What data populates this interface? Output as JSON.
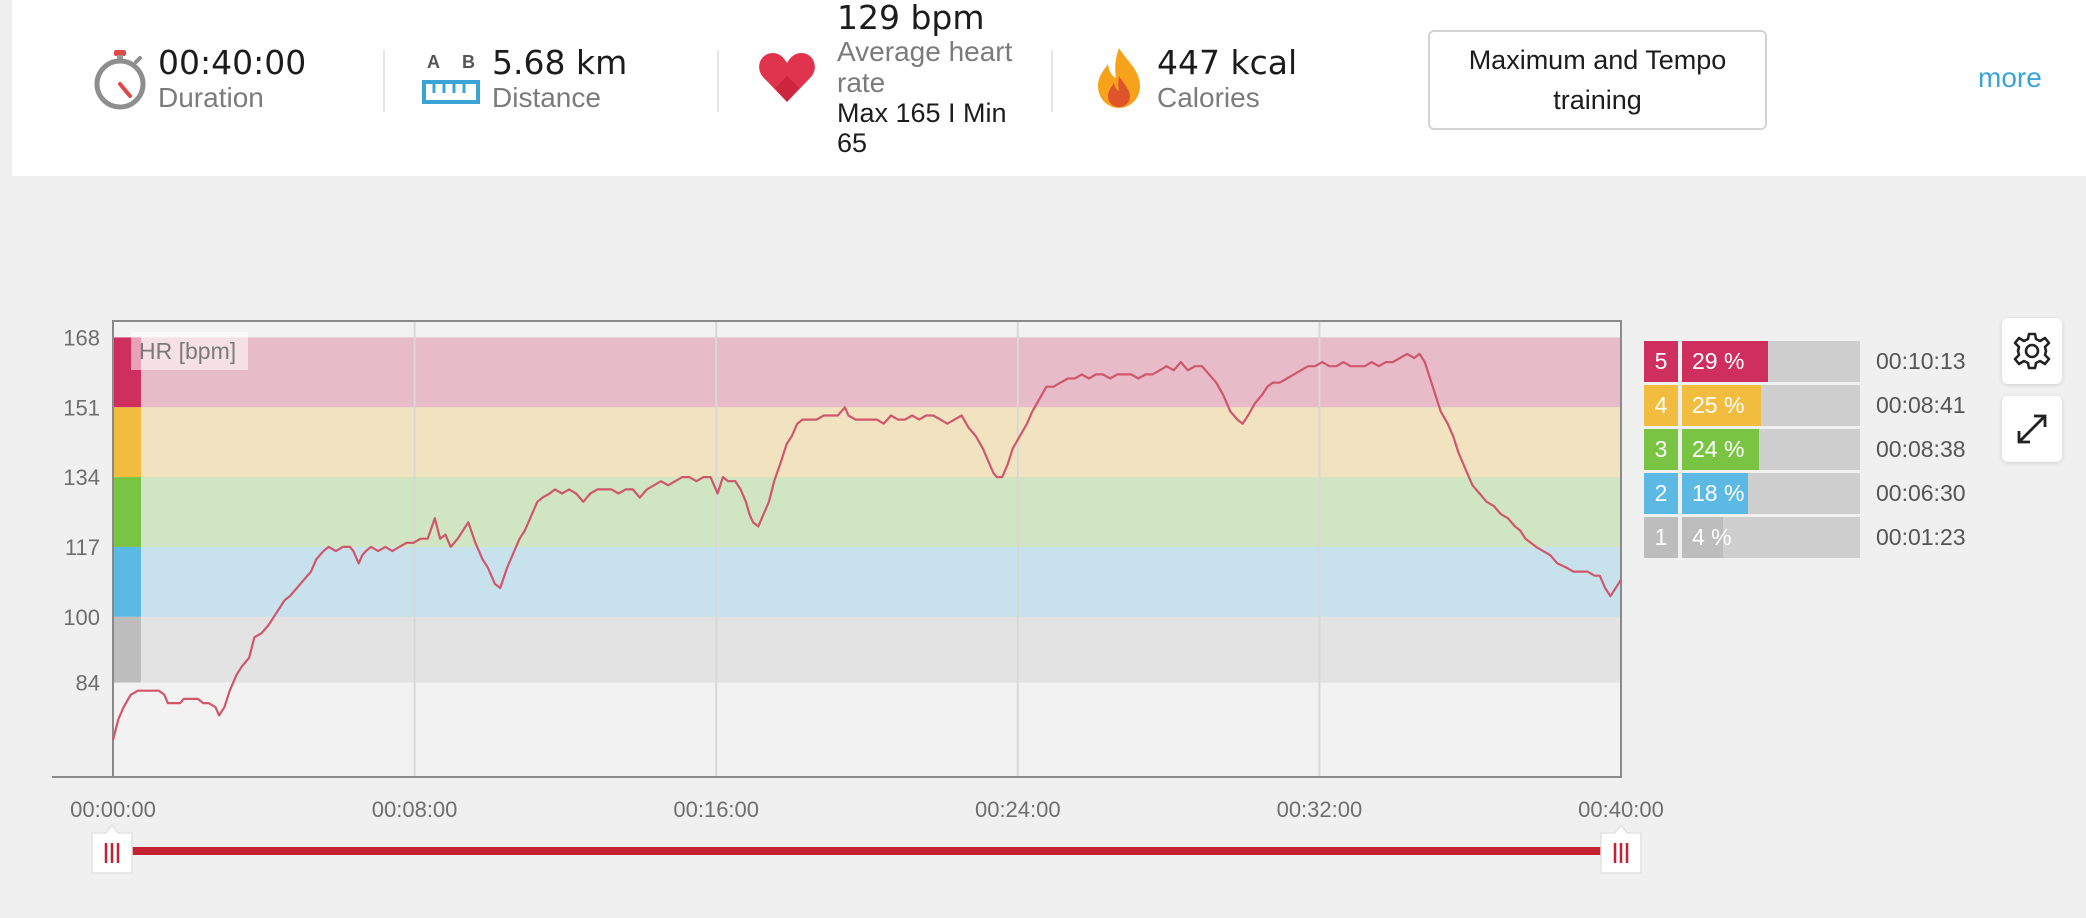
{
  "summary": {
    "duration": {
      "value": "00:40:00",
      "label": "Duration",
      "icon": "stopwatch-icon"
    },
    "distance": {
      "value": "5.68 km",
      "label": "Distance",
      "icon": "ruler-ab-icon",
      "icon_a": "A",
      "icon_b": "B"
    },
    "heart_rate": {
      "value": "129 bpm",
      "label": "Average heart rate",
      "max_min": "Max 165  I  Min 65",
      "icon": "heart-icon"
    },
    "calories": {
      "value": "447 kcal",
      "label": "Calories",
      "icon": "flame-icon"
    },
    "training_type": "Maximum and Tempo training",
    "more_label": "more"
  },
  "colors": {
    "accent": "#3aa4d6",
    "line": "#d0576a",
    "slider": "#c42132",
    "zone5": "#cf2f5e",
    "zone4": "#f2bd3f",
    "zone3": "#79c543",
    "zone2": "#5cb9e4",
    "zone1": "#bdbdbd"
  },
  "chart_data": {
    "type": "line",
    "series": [
      {
        "values": [
          [
            0.0,
            70
          ],
          [
            0.3,
            75
          ],
          [
            0.6,
            78
          ],
          [
            1.0,
            81
          ],
          [
            1.4,
            82
          ],
          [
            1.8,
            82
          ],
          [
            2.2,
            82
          ],
          [
            2.6,
            82
          ],
          [
            2.9,
            81
          ],
          [
            3.1,
            79
          ],
          [
            3.4,
            79
          ],
          [
            3.8,
            79
          ],
          [
            4.0,
            80
          ],
          [
            4.4,
            80
          ],
          [
            4.8,
            80
          ],
          [
            5.1,
            79
          ],
          [
            5.4,
            79
          ],
          [
            5.8,
            78
          ],
          [
            6.0,
            76
          ],
          [
            6.3,
            78
          ],
          [
            6.6,
            82
          ],
          [
            7.0,
            86
          ],
          [
            7.3,
            88
          ],
          [
            7.7,
            90
          ],
          [
            8.0,
            95
          ],
          [
            8.4,
            96
          ],
          [
            8.8,
            98
          ],
          [
            9.1,
            100
          ],
          [
            9.4,
            102
          ],
          [
            9.7,
            104
          ],
          [
            10.0,
            105
          ],
          [
            10.4,
            107
          ],
          [
            10.8,
            109
          ],
          [
            11.2,
            111
          ],
          [
            11.5,
            114
          ],
          [
            11.9,
            116
          ],
          [
            12.2,
            117
          ],
          [
            12.6,
            116
          ],
          [
            13.0,
            117
          ],
          [
            13.4,
            117
          ],
          [
            13.6,
            116
          ],
          [
            13.9,
            113
          ],
          [
            14.1,
            115
          ],
          [
            14.3,
            116
          ],
          [
            14.6,
            117
          ],
          [
            15.0,
            116
          ],
          [
            15.4,
            117
          ],
          [
            15.8,
            116
          ],
          [
            16.2,
            117
          ],
          [
            16.6,
            118
          ],
          [
            17.0,
            118
          ],
          [
            17.4,
            119
          ],
          [
            17.8,
            119
          ],
          [
            18.2,
            124
          ],
          [
            18.5,
            119
          ],
          [
            18.8,
            120
          ],
          [
            19.1,
            117
          ],
          [
            19.5,
            119
          ],
          [
            19.8,
            121
          ],
          [
            20.1,
            123
          ],
          [
            20.5,
            118
          ],
          [
            20.9,
            114
          ],
          [
            21.2,
            112
          ],
          [
            21.6,
            108
          ],
          [
            21.9,
            107
          ],
          [
            22.3,
            112
          ],
          [
            22.6,
            115
          ],
          [
            23.0,
            119
          ],
          [
            23.3,
            121
          ],
          [
            23.6,
            124
          ],
          [
            24.0,
            128
          ],
          [
            24.3,
            129
          ],
          [
            24.7,
            130
          ],
          [
            25.0,
            131
          ],
          [
            25.4,
            130
          ],
          [
            25.8,
            131
          ],
          [
            26.2,
            130
          ],
          [
            26.6,
            128
          ],
          [
            27.0,
            130
          ],
          [
            27.4,
            131
          ],
          [
            27.8,
            131
          ],
          [
            28.2,
            131
          ],
          [
            28.6,
            130
          ],
          [
            29.0,
            131
          ],
          [
            29.4,
            131
          ],
          [
            29.8,
            129
          ],
          [
            30.2,
            131
          ],
          [
            30.6,
            132
          ],
          [
            31.0,
            133
          ],
          [
            31.4,
            132
          ],
          [
            31.8,
            133
          ],
          [
            32.2,
            134
          ],
          [
            32.6,
            134
          ],
          [
            33.0,
            133
          ],
          [
            33.4,
            134
          ],
          [
            33.8,
            134
          ],
          [
            34.2,
            130
          ],
          [
            34.5,
            134
          ],
          [
            34.8,
            133
          ],
          [
            35.2,
            133
          ],
          [
            35.5,
            131
          ],
          [
            35.8,
            128
          ],
          [
            36.0,
            125
          ],
          [
            36.2,
            123
          ],
          [
            36.5,
            122
          ],
          [
            36.8,
            125
          ],
          [
            37.1,
            128
          ],
          [
            37.4,
            133
          ],
          [
            37.8,
            138
          ],
          [
            38.1,
            142
          ],
          [
            38.4,
            144
          ],
          [
            38.7,
            147
          ],
          [
            39.0,
            148
          ],
          [
            39.4,
            148
          ],
          [
            39.8,
            148
          ],
          [
            40.2,
            149
          ],
          [
            40.6,
            149
          ],
          [
            41.0,
            149
          ],
          [
            41.4,
            151
          ],
          [
            41.6,
            149
          ],
          [
            42.0,
            148
          ],
          [
            42.4,
            148
          ],
          [
            42.8,
            148
          ],
          [
            43.2,
            148
          ],
          [
            43.6,
            147
          ],
          [
            44.0,
            149
          ],
          [
            44.4,
            148
          ],
          [
            44.8,
            148
          ],
          [
            45.2,
            149
          ],
          [
            45.6,
            148
          ],
          [
            46.0,
            149
          ],
          [
            46.4,
            149
          ],
          [
            46.8,
            148
          ],
          [
            47.2,
            147
          ],
          [
            47.6,
            148
          ],
          [
            48.0,
            149
          ],
          [
            48.4,
            146
          ],
          [
            48.8,
            144
          ],
          [
            49.2,
            141
          ],
          [
            49.5,
            138
          ],
          [
            49.8,
            135
          ],
          [
            50.0,
            134
          ],
          [
            50.3,
            134
          ],
          [
            50.6,
            137
          ],
          [
            50.9,
            141
          ],
          [
            51.3,
            144
          ],
          [
            51.7,
            147
          ],
          [
            52.0,
            150
          ],
          [
            52.4,
            153
          ],
          [
            52.8,
            156
          ],
          [
            53.2,
            156
          ],
          [
            53.6,
            157
          ],
          [
            54.0,
            158
          ],
          [
            54.4,
            158
          ],
          [
            54.8,
            159
          ],
          [
            55.2,
            158
          ],
          [
            55.6,
            159
          ],
          [
            56.0,
            159
          ],
          [
            56.4,
            158
          ],
          [
            56.8,
            159
          ],
          [
            57.2,
            159
          ],
          [
            57.6,
            159
          ],
          [
            58.0,
            158
          ],
          [
            58.4,
            159
          ],
          [
            58.8,
            159
          ],
          [
            59.2,
            160
          ],
          [
            59.6,
            161
          ],
          [
            60.0,
            160
          ],
          [
            60.4,
            162
          ],
          [
            60.8,
            160
          ],
          [
            61.2,
            161
          ],
          [
            61.6,
            161
          ],
          [
            62.0,
            159
          ],
          [
            62.4,
            157
          ],
          [
            62.8,
            154
          ],
          [
            63.2,
            150
          ],
          [
            63.6,
            148
          ],
          [
            63.9,
            147
          ],
          [
            64.2,
            149
          ],
          [
            64.6,
            152
          ],
          [
            65.0,
            154
          ],
          [
            65.3,
            156
          ],
          [
            65.6,
            157
          ],
          [
            66.0,
            157
          ],
          [
            66.4,
            158
          ],
          [
            66.8,
            159
          ],
          [
            67.2,
            160
          ],
          [
            67.6,
            161
          ],
          [
            68.0,
            161
          ],
          [
            68.4,
            162
          ],
          [
            68.8,
            161
          ],
          [
            69.2,
            161
          ],
          [
            69.6,
            162
          ],
          [
            70.0,
            161
          ],
          [
            70.4,
            161
          ],
          [
            70.8,
            161
          ],
          [
            71.2,
            162
          ],
          [
            71.6,
            161
          ],
          [
            72.0,
            162
          ],
          [
            72.4,
            162
          ],
          [
            72.8,
            163
          ],
          [
            73.2,
            164
          ],
          [
            73.6,
            163
          ],
          [
            73.9,
            164
          ],
          [
            74.2,
            162
          ],
          [
            74.5,
            158
          ],
          [
            74.8,
            154
          ],
          [
            75.1,
            150
          ],
          [
            75.5,
            147
          ],
          [
            75.8,
            144
          ],
          [
            76.1,
            140
          ],
          [
            76.5,
            136
          ],
          [
            76.9,
            132
          ],
          [
            77.3,
            130
          ],
          [
            77.7,
            128
          ],
          [
            78.1,
            127
          ],
          [
            78.5,
            125
          ],
          [
            78.9,
            124
          ],
          [
            79.3,
            122
          ],
          [
            79.6,
            121
          ],
          [
            79.9,
            119
          ],
          [
            80.2,
            118
          ],
          [
            80.5,
            117
          ],
          [
            80.9,
            116
          ],
          [
            81.3,
            115
          ],
          [
            81.7,
            113
          ],
          [
            82.2,
            112
          ],
          [
            82.6,
            111
          ],
          [
            83.0,
            111
          ],
          [
            83.4,
            111
          ],
          [
            83.8,
            110
          ],
          [
            84.1,
            110
          ],
          [
            84.4,
            107
          ],
          [
            84.7,
            105
          ],
          [
            85.0,
            107
          ],
          [
            85.3,
            109
          ]
        ]
      }
    ],
    "x_ticks": [
      "00:00:00",
      "00:08:00",
      "00:16:00",
      "00:24:00",
      "00:32:00",
      "00:40:00"
    ],
    "y_ticks": [
      168,
      151,
      134,
      117,
      100,
      84
    ],
    "xlim": [
      0,
      85.3
    ],
    "ylim": [
      61,
      172
    ],
    "series_label": "HR [bpm]",
    "grid": true,
    "zones": [
      {
        "zone": 5,
        "min": 151,
        "max": 168,
        "color": "#cf2f5e"
      },
      {
        "zone": 4,
        "min": 134,
        "max": 151,
        "color": "#f2bd3f"
      },
      {
        "zone": 3,
        "min": 117,
        "max": 134,
        "color": "#79c543"
      },
      {
        "zone": 2,
        "min": 100,
        "max": 117,
        "color": "#5cb9e4"
      },
      {
        "zone": 1,
        "min": 84,
        "max": 100,
        "color": "#bdbdbd"
      }
    ]
  },
  "zones_table": [
    {
      "num": "5",
      "pct_label": "29 %",
      "pct": 29,
      "time": "00:10:13",
      "color": "#cf2f5e"
    },
    {
      "num": "4",
      "pct_label": "25 %",
      "pct": 25,
      "time": "00:08:41",
      "color": "#f2bd3f"
    },
    {
      "num": "3",
      "pct_label": "24 %",
      "pct": 24,
      "time": "00:08:38",
      "color": "#79c543"
    },
    {
      "num": "2",
      "pct_label": "18 %",
      "pct": 18,
      "time": "00:06:30",
      "color": "#5cb9e4"
    },
    {
      "num": "1",
      "pct_label": "4 %",
      "pct": 4,
      "time": "00:01:23",
      "color": "#bdbdbd"
    }
  ],
  "tools": {
    "settings_icon": "gear-icon",
    "expand_icon": "expand-icon"
  },
  "range_slider": {
    "start": "00:00:00",
    "end": "00:40:00"
  }
}
